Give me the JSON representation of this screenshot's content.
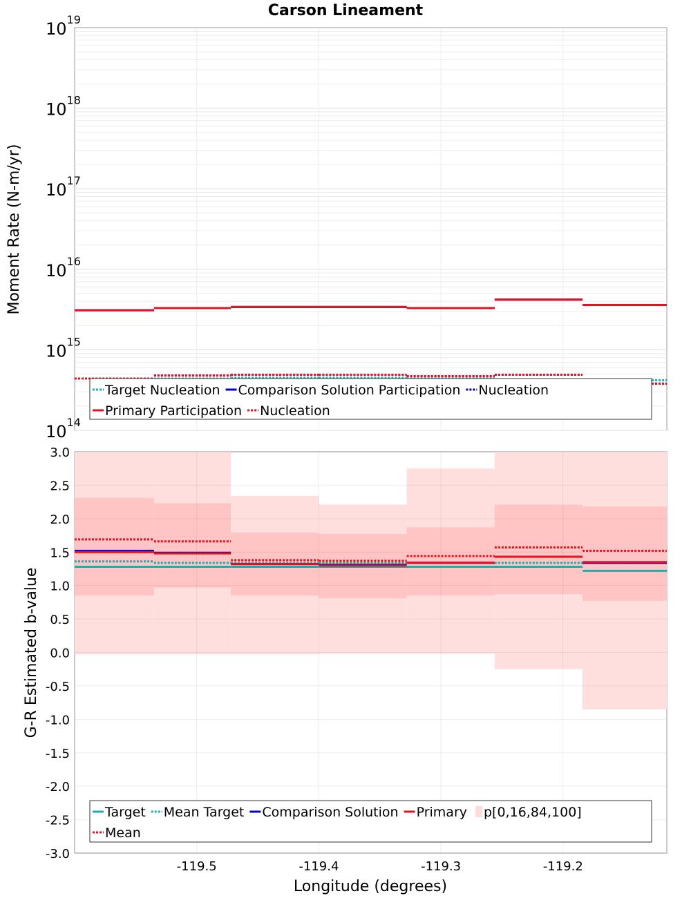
{
  "title": "Carson Lineament",
  "chart_data": [
    {
      "type": "line",
      "ylabel": "Moment Rate (N-m/yr)",
      "yscale": "log",
      "ylim": [
        100000000000000.0,
        1e+19
      ],
      "y_ticks": [
        {
          "base": "10",
          "exp": "14"
        },
        {
          "base": "10",
          "exp": "15"
        },
        {
          "base": "10",
          "exp": "16"
        },
        {
          "base": "10",
          "exp": "17"
        },
        {
          "base": "10",
          "exp": "18"
        },
        {
          "base": "10",
          "exp": "19"
        }
      ],
      "xlim": [
        -119.6,
        -119.115
      ],
      "x_ticks": [
        -119.5,
        -119.4,
        -119.3,
        -119.2
      ],
      "grid": true,
      "legend_position": "bottom",
      "segment_edges": [
        -119.6,
        -119.535,
        -119.472,
        -119.4,
        -119.328,
        -119.256,
        -119.184,
        -119.115
      ],
      "series": [
        {
          "name": "Target Nucleation",
          "legend_label": "Target Nucleation",
          "color": "#17b0ae",
          "style": "dotted",
          "values": [
            440000000000000.0,
            440000000000000.0,
            450000000000000.0,
            450000000000000.0,
            440000000000000.0,
            430000000000000.0,
            420000000000000.0
          ]
        },
        {
          "name": "Comparison Solution Participation",
          "legend_label": "Comparison Solution Participation",
          "color": "#0000cc",
          "style": "solid",
          "values": [
            3100000000000000.0,
            3300000000000000.0,
            3400000000000000.0,
            3400000000000000.0,
            3300000000000000.0,
            4200000000000000.0,
            3600000000000000.0
          ]
        },
        {
          "name": "Comparison Solution Nucleation",
          "legend_label": "Nucleation",
          "color": "#0000aa",
          "style": "dotted",
          "values": [
            440000000000000.0,
            480000000000000.0,
            490000000000000.0,
            490000000000000.0,
            470000000000000.0,
            490000000000000.0,
            380000000000000.0
          ]
        },
        {
          "name": "Primary Participation",
          "legend_label": "Primary Participation",
          "color": "#e8101e",
          "style": "solid",
          "values": [
            3100000000000000.0,
            3300000000000000.0,
            3400000000000000.0,
            3400000000000000.0,
            3300000000000000.0,
            4200000000000000.0,
            3600000000000000.0
          ]
        },
        {
          "name": "Primary Nucleation",
          "legend_label": "Nucleation",
          "color": "#e8101e",
          "style": "dotted",
          "values": [
            440000000000000.0,
            480000000000000.0,
            490000000000000.0,
            490000000000000.0,
            470000000000000.0,
            490000000000000.0,
            380000000000000.0
          ]
        }
      ]
    },
    {
      "type": "line",
      "xlabel": "Longitude (degrees)",
      "ylabel": "G-R Estimated b-value",
      "ylim": [
        -3.0,
        3.0
      ],
      "y_ticks": [
        "3.0",
        "2.5",
        "2.0",
        "1.5",
        "1.0",
        "0.5",
        "0.0",
        "-0.5",
        "-1.0",
        "-1.5",
        "-2.0",
        "-2.5",
        "-3.0"
      ],
      "xlim": [
        -119.6,
        -119.115
      ],
      "x_ticks": [
        -119.5,
        -119.4,
        -119.3,
        -119.2
      ],
      "x_tick_labels": [
        "-119.5",
        "-119.4",
        "-119.3",
        "-119.2"
      ],
      "grid": true,
      "legend_position": "bottom",
      "segment_edges": [
        -119.6,
        -119.535,
        -119.472,
        -119.4,
        -119.328,
        -119.256,
        -119.184,
        -119.115
      ],
      "band_name": "p[0,16,84,100]",
      "bands": {
        "p0": [
          -0.03,
          -0.03,
          -0.03,
          -0.02,
          -0.02,
          -0.25,
          -0.85
        ],
        "p16": [
          0.85,
          0.97,
          0.85,
          0.81,
          0.85,
          0.87,
          0.77
        ],
        "p84": [
          2.31,
          2.23,
          1.79,
          1.77,
          1.87,
          2.21,
          2.18
        ],
        "p100": [
          3.0,
          3.0,
          2.34,
          2.21,
          2.75,
          3.0,
          3.0
        ]
      },
      "series": [
        {
          "name": "Target",
          "color": "#17b0ae",
          "style": "solid",
          "values": [
            1.28,
            1.28,
            1.28,
            1.28,
            1.28,
            1.28,
            1.22
          ]
        },
        {
          "name": "Mean Target",
          "color": "#17b0ae",
          "style": "dotted",
          "values": [
            1.36,
            1.34,
            1.34,
            1.34,
            1.34,
            1.34,
            1.34
          ]
        },
        {
          "name": "Comparison Solution",
          "color": "#0000cc",
          "style": "solid",
          "values": [
            1.52,
            1.49,
            1.32,
            1.31,
            1.34,
            1.43,
            1.34
          ]
        },
        {
          "name": "Primary",
          "color": "#e8101e",
          "style": "solid",
          "values": [
            1.5,
            1.48,
            1.32,
            1.3,
            1.34,
            1.43,
            1.35
          ]
        },
        {
          "name": "Mean",
          "color": "#e8101e",
          "style": "dotted",
          "values": [
            1.69,
            1.66,
            1.38,
            1.37,
            1.44,
            1.57,
            1.52
          ]
        }
      ]
    }
  ],
  "legend_top": {
    "row1": [
      {
        "label": "Target Nucleation",
        "color": "#17b0ae",
        "style": "dotted"
      },
      {
        "label": "Comparison Solution Participation",
        "color": "#0000cc",
        "style": "solid"
      },
      {
        "label": "Nucleation",
        "color": "#0000aa",
        "style": "dotted"
      }
    ],
    "row2": [
      {
        "label": "Primary Participation",
        "color": "#e8101e",
        "style": "solid"
      },
      {
        "label": "Nucleation",
        "color": "#e8101e",
        "style": "dotted"
      }
    ]
  },
  "legend_bottom": {
    "row1": [
      {
        "label": "Target",
        "color": "#17b0ae",
        "style": "solid"
      },
      {
        "label": "Mean Target",
        "color": "#17b0ae",
        "style": "dotted"
      },
      {
        "label": "Comparison Solution",
        "color": "#0000cc",
        "style": "solid"
      },
      {
        "label": "Primary",
        "color": "#e8101e",
        "style": "solid"
      },
      {
        "label": "p[0,16,84,100]",
        "color": "#ffdcdc",
        "style": "fill"
      }
    ],
    "row2": [
      {
        "label": "Mean",
        "color": "#e8101e",
        "style": "dotted"
      }
    ]
  }
}
